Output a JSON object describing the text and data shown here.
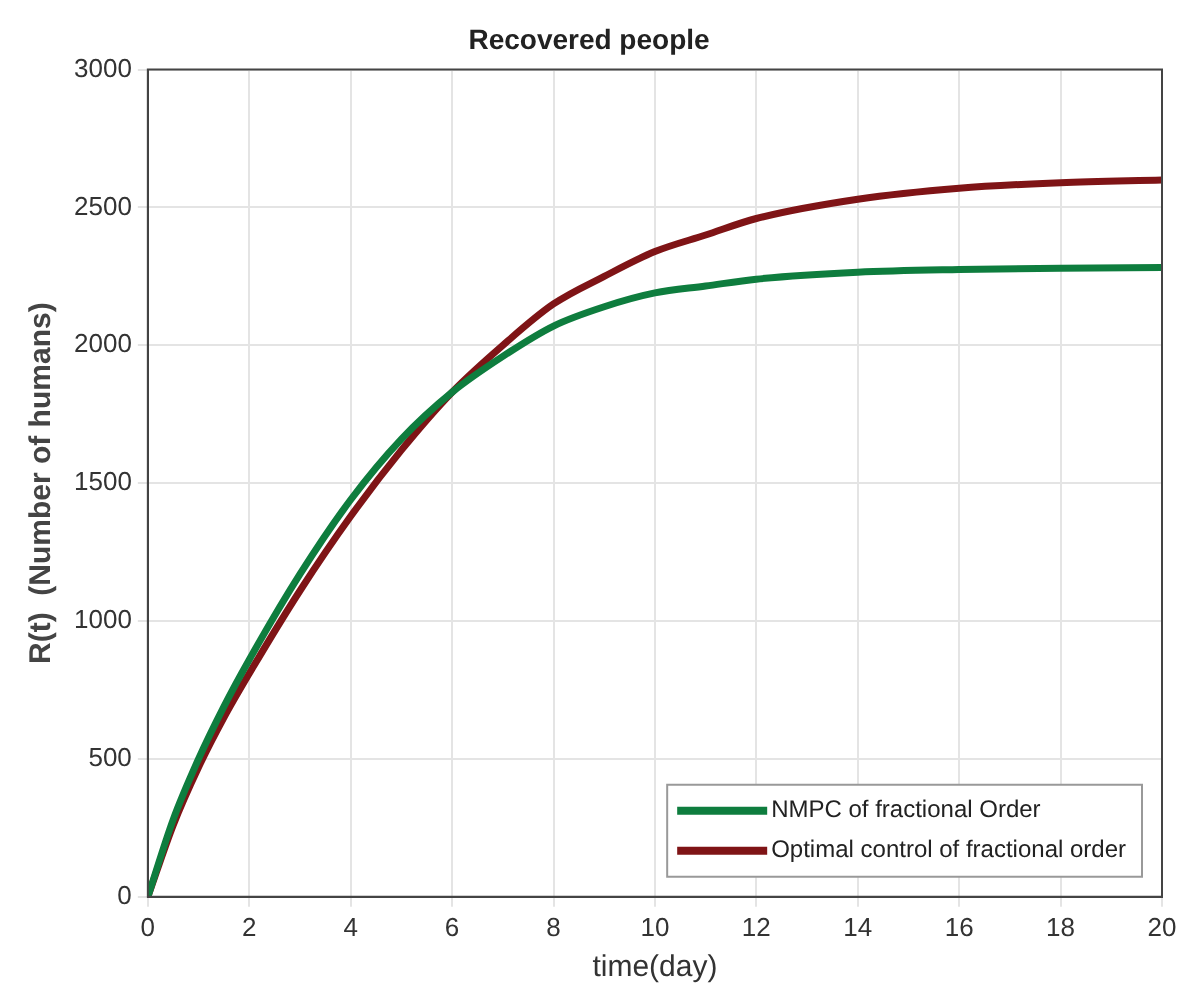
{
  "chart_data": {
    "type": "line",
    "title": "Recovered people",
    "xlabel": "time(day)",
    "ylabel": "R(t)  (Number of humans)",
    "x": [
      0,
      0.5,
      1,
      1.5,
      2,
      3,
      4,
      5,
      6,
      7,
      8,
      9,
      10,
      11,
      12,
      14,
      16,
      18,
      20
    ],
    "series": [
      {
        "name": "NMPC of fractional Order",
        "color": "#0e7d3e",
        "values": [
          0,
          280,
          500,
          690,
          860,
          1170,
          1440,
          1660,
          1830,
          1960,
          2070,
          2140,
          2190,
          2215,
          2240,
          2265,
          2275,
          2280,
          2282
        ]
      },
      {
        "name": "Optimal control of fractional order",
        "color": "#7f1416",
        "values": [
          0,
          260,
          470,
          650,
          810,
          1110,
          1380,
          1620,
          1830,
          2000,
          2150,
          2250,
          2340,
          2400,
          2460,
          2530,
          2570,
          2590,
          2600
        ]
      }
    ],
    "xlim": [
      0,
      20
    ],
    "xticks": [
      0,
      2,
      4,
      6,
      8,
      10,
      12,
      14,
      16,
      18,
      20
    ],
    "ylim": [
      0,
      3000
    ],
    "yticks": [
      0,
      500,
      1000,
      1500,
      2000,
      2500,
      3000
    ],
    "grid": true,
    "legend": "bottom right",
    "marker": "none",
    "line_style": "solid"
  }
}
